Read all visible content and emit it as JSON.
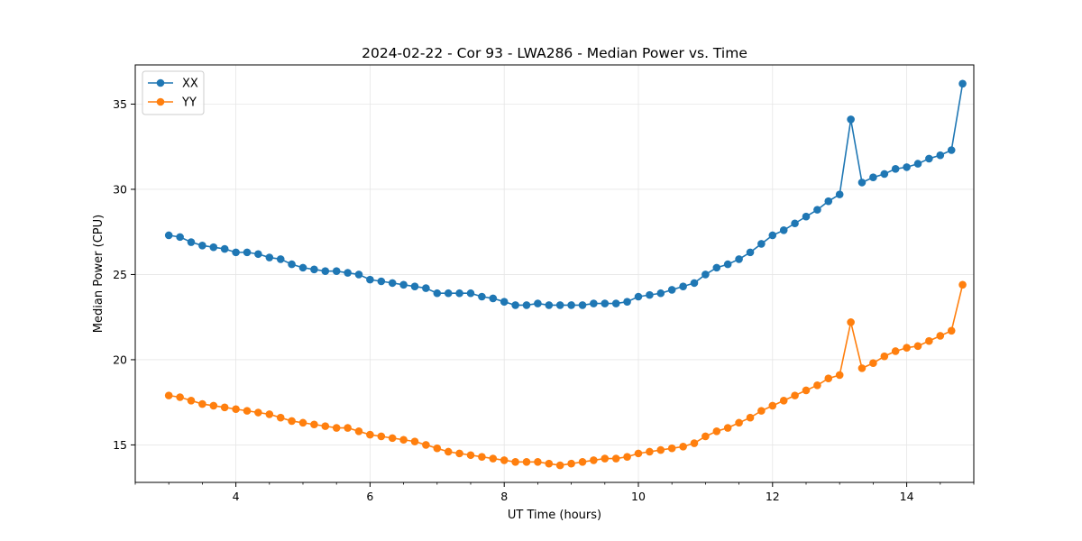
{
  "chart_data": {
    "type": "line",
    "title": "2024-02-22 - Cor 93 - LWA286 - Median Power vs. Time",
    "xlabel": "UT Time (hours)",
    "ylabel": "Median Power (CPU)",
    "xlim": [
      2.5,
      15.0
    ],
    "ylim": [
      12.8,
      37.3
    ],
    "xticks": [
      4,
      6,
      8,
      10,
      12,
      14
    ],
    "xtick_labels": [
      "4",
      "6",
      "8",
      "10",
      "12",
      "14"
    ],
    "x_minor_step": 0.5,
    "yticks": [
      15,
      20,
      25,
      30,
      35
    ],
    "ytick_labels": [
      "15",
      "20",
      "25",
      "30",
      "35"
    ],
    "grid": true,
    "legend_position": "top-left",
    "x": [
      3.0,
      3.167,
      3.333,
      3.5,
      3.667,
      3.833,
      4.0,
      4.167,
      4.333,
      4.5,
      4.667,
      4.833,
      5.0,
      5.167,
      5.333,
      5.5,
      5.667,
      5.833,
      6.0,
      6.167,
      6.333,
      6.5,
      6.667,
      6.833,
      7.0,
      7.167,
      7.333,
      7.5,
      7.667,
      7.833,
      8.0,
      8.167,
      8.333,
      8.5,
      8.667,
      8.833,
      9.0,
      9.167,
      9.333,
      9.5,
      9.667,
      9.833,
      10.0,
      10.167,
      10.333,
      10.5,
      10.667,
      10.833,
      11.0,
      11.167,
      11.333,
      11.5,
      11.667,
      11.833,
      12.0,
      12.167,
      12.333,
      12.5,
      12.667,
      12.833,
      13.0,
      13.167,
      13.333,
      13.5,
      13.667,
      13.833,
      14.0,
      14.167,
      14.333,
      14.5,
      14.667,
      14.833
    ],
    "series": [
      {
        "name": "XX",
        "color": "#1f77b4",
        "values": [
          27.3,
          27.2,
          26.9,
          26.7,
          26.6,
          26.5,
          26.3,
          26.3,
          26.2,
          26.0,
          25.9,
          25.6,
          25.4,
          25.3,
          25.2,
          25.2,
          25.1,
          25.0,
          24.7,
          24.6,
          24.5,
          24.4,
          24.3,
          24.2,
          23.9,
          23.9,
          23.9,
          23.9,
          23.7,
          23.6,
          23.4,
          23.2,
          23.2,
          23.3,
          23.2,
          23.2,
          23.2,
          23.2,
          23.3,
          23.3,
          23.3,
          23.4,
          23.7,
          23.8,
          23.9,
          24.1,
          24.3,
          24.5,
          25.0,
          25.4,
          25.6,
          25.9,
          26.3,
          26.8,
          27.3,
          27.6,
          28.0,
          28.4,
          28.8,
          29.3,
          29.7,
          34.1,
          30.4,
          30.7,
          30.9,
          31.2,
          31.3,
          31.5,
          31.8,
          32.0,
          32.3,
          36.2
        ]
      },
      {
        "name": "YY",
        "color": "#ff7f0e",
        "values": [
          17.9,
          17.8,
          17.6,
          17.4,
          17.3,
          17.2,
          17.1,
          17.0,
          16.9,
          16.8,
          16.6,
          16.4,
          16.3,
          16.2,
          16.1,
          16.0,
          16.0,
          15.8,
          15.6,
          15.5,
          15.4,
          15.3,
          15.2,
          15.0,
          14.8,
          14.6,
          14.5,
          14.4,
          14.3,
          14.2,
          14.1,
          14.0,
          14.0,
          14.0,
          13.9,
          13.8,
          13.9,
          14.0,
          14.1,
          14.2,
          14.2,
          14.3,
          14.5,
          14.6,
          14.7,
          14.8,
          14.9,
          15.1,
          15.5,
          15.8,
          16.0,
          16.3,
          16.6,
          17.0,
          17.3,
          17.6,
          17.9,
          18.2,
          18.5,
          18.9,
          19.1,
          22.2,
          19.5,
          19.8,
          20.2,
          20.5,
          20.7,
          20.8,
          21.1,
          21.4,
          21.7,
          24.4
        ]
      }
    ]
  }
}
